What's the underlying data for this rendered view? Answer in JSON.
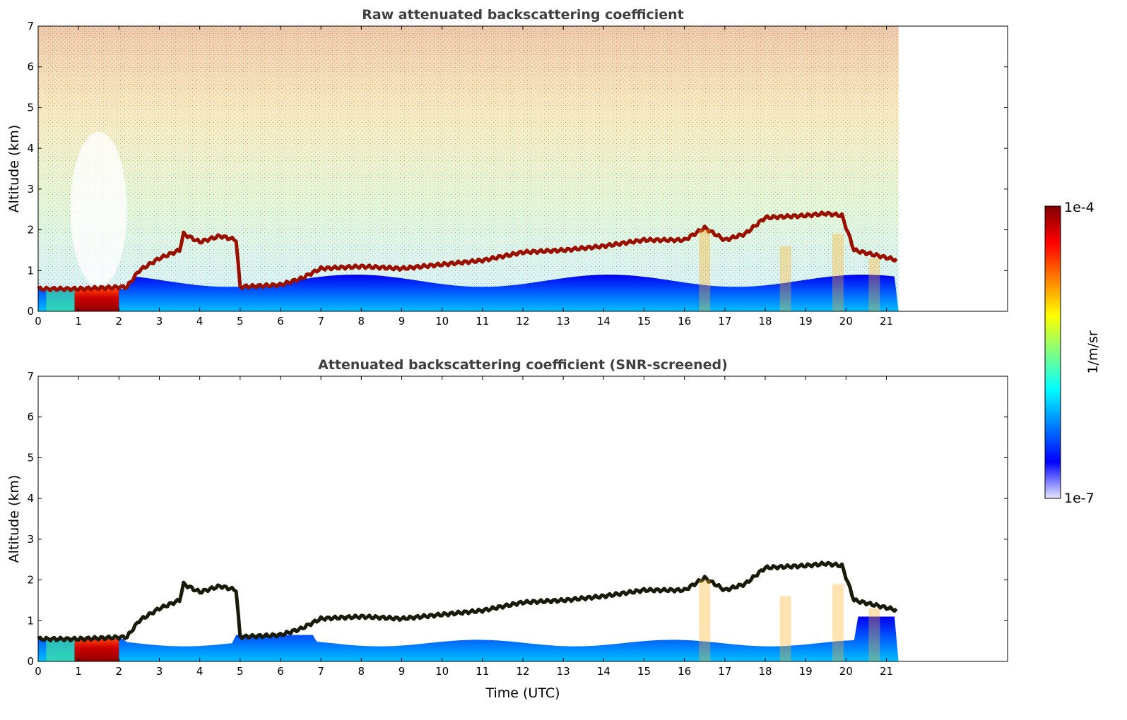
{
  "chart_data": [
    {
      "type": "heatmap",
      "title": "Raw attenuated backscattering coefficient",
      "ylabel": "Altitude (km)",
      "xlabel": "",
      "xlim": [
        0,
        24
      ],
      "ylim": [
        0,
        7
      ],
      "x_ticks": [
        0,
        1,
        2,
        3,
        4,
        5,
        6,
        7,
        8,
        9,
        10,
        11,
        12,
        13,
        14,
        15,
        16,
        17,
        18,
        19,
        20,
        21
      ],
      "y_ticks": [
        0,
        1,
        2,
        3,
        4,
        5,
        6,
        7
      ],
      "data_extent_x": [
        0,
        21.3
      ],
      "cloud_base_km": [
        [
          0,
          0.55
        ],
        [
          1.0,
          0.55
        ],
        [
          2.2,
          0.6
        ],
        [
          2.5,
          1.0
        ],
        [
          3.0,
          1.3
        ],
        [
          3.5,
          1.5
        ],
        [
          3.6,
          1.9
        ],
        [
          4.0,
          1.7
        ],
        [
          4.5,
          1.85
        ],
        [
          4.9,
          1.75
        ],
        [
          5.0,
          0.6
        ],
        [
          6.0,
          0.65
        ],
        [
          6.5,
          0.8
        ],
        [
          7.0,
          1.05
        ],
        [
          8.0,
          1.1
        ],
        [
          9.0,
          1.05
        ],
        [
          10.0,
          1.15
        ],
        [
          11.0,
          1.25
        ],
        [
          12.0,
          1.45
        ],
        [
          13.0,
          1.5
        ],
        [
          14.0,
          1.6
        ],
        [
          15.0,
          1.75
        ],
        [
          16.0,
          1.75
        ],
        [
          16.5,
          2.05
        ],
        [
          17.0,
          1.75
        ],
        [
          17.5,
          1.9
        ],
        [
          18.0,
          2.3
        ],
        [
          19.0,
          2.35
        ],
        [
          19.5,
          2.4
        ],
        [
          19.9,
          2.35
        ],
        [
          20.2,
          1.5
        ],
        [
          21.3,
          1.25
        ]
      ]
    },
    {
      "type": "heatmap",
      "title": "Attenuated backscattering coefficient (SNR-screened)",
      "ylabel": "Altitude (km)",
      "xlabel": "Time (UTC)",
      "xlim": [
        0,
        24
      ],
      "ylim": [
        0,
        7
      ],
      "x_ticks": [
        0,
        1,
        2,
        3,
        4,
        5,
        6,
        7,
        8,
        9,
        10,
        11,
        12,
        13,
        14,
        15,
        16,
        17,
        18,
        19,
        20,
        21
      ],
      "y_ticks": [
        0,
        1,
        2,
        3,
        4,
        5,
        6,
        7
      ],
      "data_extent_x": [
        0,
        21.3
      ]
    }
  ],
  "colorbar": {
    "label": "1/m/sr",
    "max_label": "1e-4",
    "min_label": "1e-7",
    "colormap": "jet",
    "colors": [
      "#e8e8ff",
      "#0000ff",
      "#0080ff",
      "#00ffff",
      "#80ff80",
      "#ffff00",
      "#ff8000",
      "#ff0000",
      "#800000"
    ]
  }
}
